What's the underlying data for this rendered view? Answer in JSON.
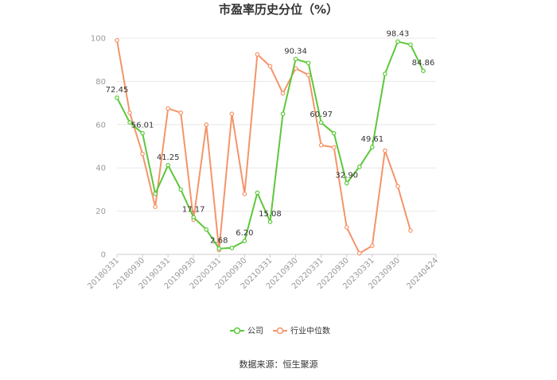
{
  "chart_data": {
    "type": "line",
    "title": "市盈率历史分位（%）",
    "source": "数据来源：恒生聚源",
    "ylim": [
      0,
      100
    ],
    "yticks": [
      0,
      20,
      40,
      60,
      80,
      100
    ],
    "grid": true,
    "legend_position": "bottom",
    "x": [
      "20180331",
      "20180630",
      "20180930",
      "20181231",
      "20190331",
      "20190630",
      "20190930",
      "20191231",
      "20200331",
      "20200630",
      "20200930",
      "20201231",
      "20210331",
      "20210630",
      "20210930",
      "20211231",
      "20220331",
      "20220630",
      "20220930",
      "20221231",
      "20230331",
      "20230630",
      "20230930",
      "20231231",
      "20240331",
      "20240424"
    ],
    "xtick_labels": [
      "20180331",
      "20180930",
      "20190331",
      "20190930",
      "20200331",
      "20200930",
      "20210331",
      "20210930",
      "20220331",
      "20220930",
      "20230331",
      "20230930",
      "20240424"
    ],
    "series": [
      {
        "name": "公司",
        "color": "#5cc83a",
        "values": [
          72.45,
          61.0,
          56.01,
          28.0,
          41.25,
          30.0,
          17.17,
          11.5,
          2.68,
          3.0,
          6.2,
          28.5,
          15.08,
          65.0,
          90.34,
          88.5,
          60.97,
          56.0,
          32.9,
          40.5,
          49.61,
          83.5,
          98.43,
          97.0,
          84.86,
          null
        ],
        "labels": {
          "0": "72.45",
          "2": "56.01",
          "4": "41.25",
          "6": "17.17",
          "8": "2.68",
          "10": "6.20",
          "12": "15.08",
          "14": "90.34",
          "16": "60.97",
          "18": "32.90",
          "20": "49.61",
          "22": "98.43",
          "24": "84.86"
        }
      },
      {
        "name": "行业中位数",
        "color": "#f5946a",
        "values": [
          99.0,
          65.5,
          46.5,
          22.0,
          67.5,
          65.5,
          16.0,
          60.0,
          2.0,
          65.0,
          28.0,
          92.5,
          87.0,
          74.5,
          86.0,
          83.0,
          50.5,
          49.5,
          12.5,
          0.5,
          4.0,
          48.0,
          31.5,
          11.0,
          null,
          null
        ]
      }
    ]
  }
}
